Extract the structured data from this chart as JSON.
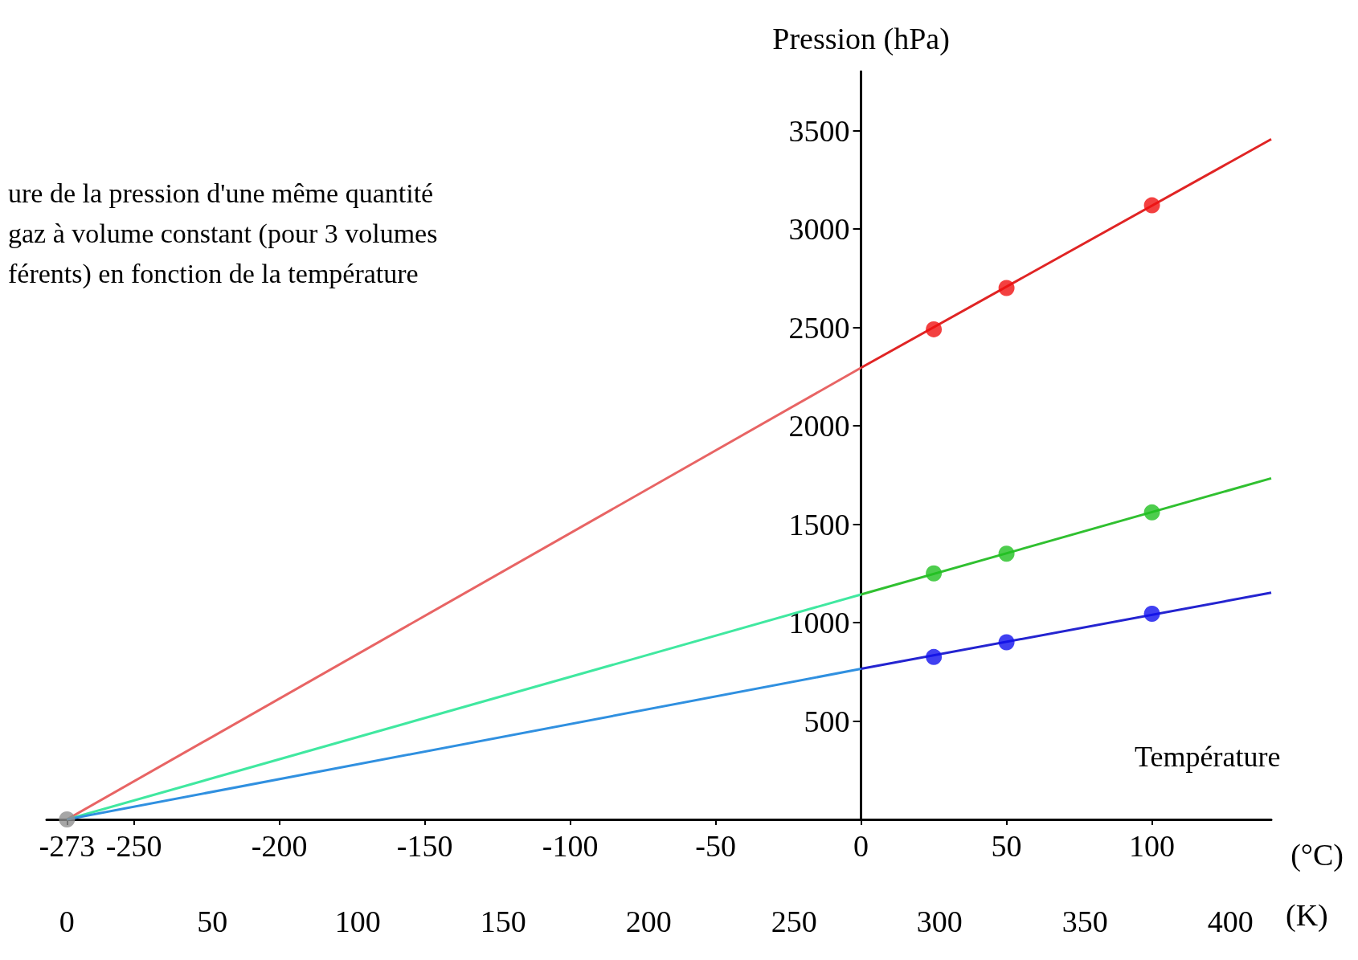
{
  "chart_data": {
    "type": "line",
    "title": "ure de la pression d'une même quantité\ngaz à volume constant (pour 3 volumes\nférents) en fonction de la température",
    "ylabel": "Pression (hPa)",
    "xlabel": "Température",
    "x2label": "(K)",
    "annotations": [
      "(°C)"
    ],
    "xlim": [
      -280,
      141
    ],
    "xticks": [
      -273,
      -250,
      -200,
      -150,
      -100,
      -50,
      0,
      50,
      100
    ],
    "x2lim": [
      -7,
      414
    ],
    "x2ticks": [
      0,
      50,
      100,
      150,
      200,
      250,
      300,
      350,
      400
    ],
    "ylim": [
      0,
      3800
    ],
    "yticks": [
      500,
      1000,
      1500,
      2000,
      2500,
      3000,
      3500
    ],
    "grid": false,
    "series": [
      {
        "type": "line",
        "marker": "none",
        "color": "#e86464",
        "x": [
          -273,
          0
        ],
        "values": [
          0,
          2295
        ]
      },
      {
        "type": "line",
        "marker": "none",
        "color": "#e02424",
        "x": [
          0,
          141
        ],
        "values": [
          2295,
          3456
        ]
      },
      {
        "type": "scatter",
        "marker": "circle",
        "color": "#f01010",
        "x": [
          25,
          50,
          100
        ],
        "values": [
          2490,
          2700,
          3120
        ]
      },
      {
        "type": "line",
        "marker": "none",
        "color": "#40e8a0",
        "x": [
          -273,
          0
        ],
        "values": [
          0,
          1143
        ]
      },
      {
        "type": "line",
        "marker": "none",
        "color": "#30c030",
        "x": [
          0,
          141
        ],
        "values": [
          1143,
          1733
        ]
      },
      {
        "type": "scatter",
        "marker": "circle",
        "color": "#20c020",
        "x": [
          25,
          50,
          100
        ],
        "values": [
          1250,
          1350,
          1560
        ]
      },
      {
        "type": "line",
        "marker": "none",
        "color": "#3090e0",
        "x": [
          -273,
          0
        ],
        "values": [
          0,
          765
        ]
      },
      {
        "type": "line",
        "marker": "none",
        "color": "#2424d0",
        "x": [
          0,
          141
        ],
        "values": [
          765,
          1152
        ]
      },
      {
        "type": "scatter",
        "marker": "circle",
        "color": "#1010ee",
        "x": [
          25,
          50,
          100
        ],
        "values": [
          825,
          900,
          1045
        ]
      },
      {
        "type": "scatter",
        "marker": "circle",
        "color": "#909090",
        "x": [
          -273
        ],
        "values": [
          0
        ]
      }
    ]
  }
}
